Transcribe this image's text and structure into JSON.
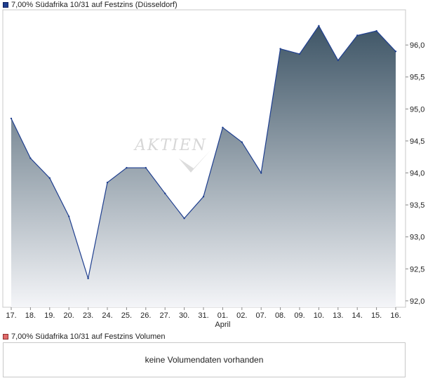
{
  "chart": {
    "title": "7,00% Südafrika 10/31 auf Festzins (Düsseldorf)",
    "series_color": "#1f3f8f",
    "fill_top_color": "#3e5566",
    "fill_bottom_color": "#f4f5f8",
    "watermark": "AKTIEN",
    "month_label": "April"
  },
  "volume": {
    "title": "7,00% Südafrika 10/31 auf Festzins Volumen",
    "empty_message": "keine Volumendaten vorhanden"
  },
  "chart_data": {
    "type": "area",
    "title": "7,00% Südafrika 10/31 auf Festzins (Düsseldorf)",
    "xlabel": "",
    "ylabel": "",
    "categories": [
      "17.",
      "18.",
      "19.",
      "20.",
      "23.",
      "24.",
      "25.",
      "26.",
      "27.",
      "30.",
      "31.",
      "01.",
      "02.",
      "07.",
      "08.",
      "09.",
      "10.",
      "13.",
      "14.",
      "15.",
      "16."
    ],
    "values": [
      94.85,
      94.23,
      93.92,
      93.32,
      92.35,
      93.85,
      94.08,
      94.08,
      93.68,
      93.29,
      93.63,
      94.71,
      94.48,
      94.0,
      95.94,
      95.86,
      96.3,
      95.76,
      96.15,
      96.22,
      95.9
    ],
    "ylim": [
      91.9,
      96.55
    ],
    "yticks": [
      92.0,
      92.5,
      93.0,
      93.5,
      94.0,
      94.5,
      95.0,
      95.5,
      96.0
    ],
    "ytick_labels": [
      "92,0",
      "92,5",
      "93,0",
      "93,5",
      "94,0",
      "94,5",
      "95,0",
      "95,5",
      "96,0"
    ],
    "secondary_x_label": {
      "text": "April",
      "at_category": "01."
    },
    "grid": false,
    "legend": "top-left"
  }
}
